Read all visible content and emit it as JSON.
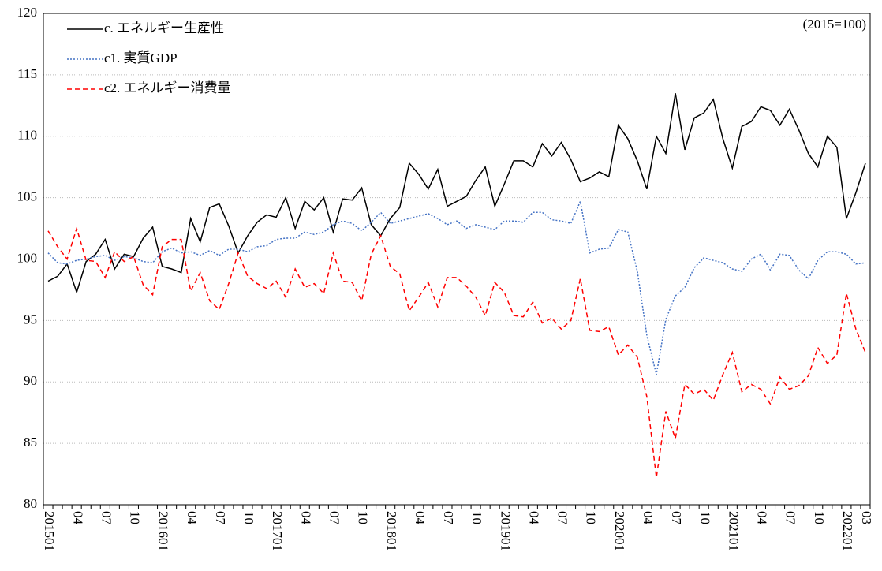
{
  "chart_data": {
    "type": "line",
    "annotation": "(2015=100)",
    "categories": [
      "201501",
      null,
      null,
      "04",
      null,
      null,
      "07",
      null,
      null,
      "10",
      null,
      null,
      "201601",
      null,
      null,
      "04",
      null,
      null,
      "07",
      null,
      null,
      "10",
      null,
      null,
      "201701",
      null,
      null,
      "04",
      null,
      null,
      "07",
      null,
      null,
      "10",
      null,
      null,
      "201801",
      null,
      null,
      "04",
      null,
      null,
      "07",
      null,
      null,
      "10",
      null,
      null,
      "201901",
      null,
      null,
      "04",
      null,
      null,
      "07",
      null,
      null,
      "10",
      null,
      null,
      "202001",
      null,
      null,
      "04",
      null,
      null,
      "07",
      null,
      null,
      "10",
      null,
      null,
      "202101",
      null,
      null,
      "04",
      null,
      null,
      "07",
      null,
      null,
      "10",
      null,
      null,
      "202201",
      null,
      "03"
    ],
    "series": [
      {
        "name": "c. エネルギー生産性",
        "color": "#000000",
        "line_style": "solid",
        "values": [
          98.2,
          98.6,
          99.6,
          97.3,
          99.8,
          100.4,
          101.6,
          99.2,
          100.4,
          100.2,
          101.7,
          102.6,
          99.4,
          99.2,
          98.9,
          103.3,
          101.4,
          104.2,
          104.5,
          102.7,
          100.5,
          101.9,
          103.0,
          103.6,
          103.4,
          105.0,
          102.5,
          104.7,
          104.0,
          105.0,
          102.2,
          104.9,
          104.8,
          105.8,
          102.8,
          101.9,
          103.3,
          104.2,
          107.8,
          106.9,
          105.7,
          107.3,
          104.3,
          104.7,
          105.1,
          106.4,
          107.5,
          104.3,
          106.1,
          108.0,
          108.0,
          107.5,
          109.4,
          108.4,
          109.5,
          108.1,
          106.3,
          106.6,
          107.1,
          106.7,
          110.9,
          109.8,
          108.0,
          105.7,
          110.0,
          108.6,
          113.5,
          108.9,
          111.5,
          111.9,
          113.0,
          109.8,
          107.4,
          110.8,
          111.2,
          112.4,
          112.1,
          110.9,
          112.2,
          110.5,
          108.6,
          107.5,
          110.0,
          109.1,
          103.3,
          105.4,
          107.8
        ]
      },
      {
        "name": "c1. 実質GDP",
        "color": "#4472c4",
        "line_style": "dotted",
        "values": [
          100.5,
          99.7,
          99.6,
          99.9,
          100.0,
          100.2,
          100.3,
          99.9,
          100.2,
          100.1,
          99.8,
          99.7,
          100.6,
          100.9,
          100.5,
          100.6,
          100.3,
          100.7,
          100.3,
          100.8,
          100.8,
          100.6,
          101.0,
          101.1,
          101.6,
          101.7,
          101.7,
          102.2,
          102.0,
          102.2,
          102.8,
          103.1,
          102.9,
          102.3,
          103.0,
          103.8,
          102.9,
          103.1,
          103.3,
          103.5,
          103.7,
          103.3,
          102.8,
          103.1,
          102.5,
          102.8,
          102.6,
          102.4,
          103.1,
          103.1,
          103.0,
          103.8,
          103.8,
          103.2,
          103.1,
          102.9,
          104.7,
          100.5,
          100.8,
          100.9,
          102.4,
          102.2,
          99.0,
          93.8,
          90.6,
          95.1,
          97.0,
          97.7,
          99.3,
          100.1,
          99.9,
          99.7,
          99.2,
          99.0,
          100.0,
          100.4,
          99.1,
          100.4,
          100.3,
          99.1,
          98.4,
          99.9,
          100.6,
          100.6,
          100.4,
          99.6,
          99.7
        ]
      },
      {
        "name": "c2. エネルギー消費量",
        "color": "#ff0000",
        "line_style": "dashed",
        "values": [
          102.3,
          101.0,
          100.0,
          102.5,
          99.9,
          99.8,
          98.5,
          100.6,
          99.8,
          100.2,
          97.9,
          97.1,
          101.0,
          101.6,
          101.6,
          97.4,
          98.9,
          96.6,
          95.9,
          98.0,
          100.5,
          98.6,
          98.0,
          97.6,
          98.2,
          96.9,
          99.2,
          97.7,
          98.0,
          97.2,
          100.5,
          98.2,
          98.1,
          96.6,
          100.4,
          101.9,
          99.4,
          98.8,
          95.8,
          96.9,
          98.1,
          96.1,
          98.5,
          98.5,
          97.8,
          96.9,
          95.4,
          98.1,
          97.3,
          95.4,
          95.3,
          96.5,
          94.8,
          95.2,
          94.3,
          95.0,
          98.4,
          94.2,
          94.1,
          94.5,
          92.2,
          93.0,
          92.0,
          88.8,
          82.2,
          87.6,
          85.4,
          89.8,
          89.0,
          89.4,
          88.5,
          90.6,
          92.4,
          89.2,
          89.8,
          89.4,
          88.2,
          90.4,
          89.4,
          89.7,
          90.5,
          92.8,
          91.5,
          92.2,
          97.2,
          94.3,
          92.4
        ]
      }
    ],
    "ylim": [
      80,
      120
    ],
    "yticks": [
      80,
      85,
      90,
      95,
      100,
      105,
      110,
      115,
      120
    ],
    "grid": true,
    "legend": "upper-left"
  }
}
